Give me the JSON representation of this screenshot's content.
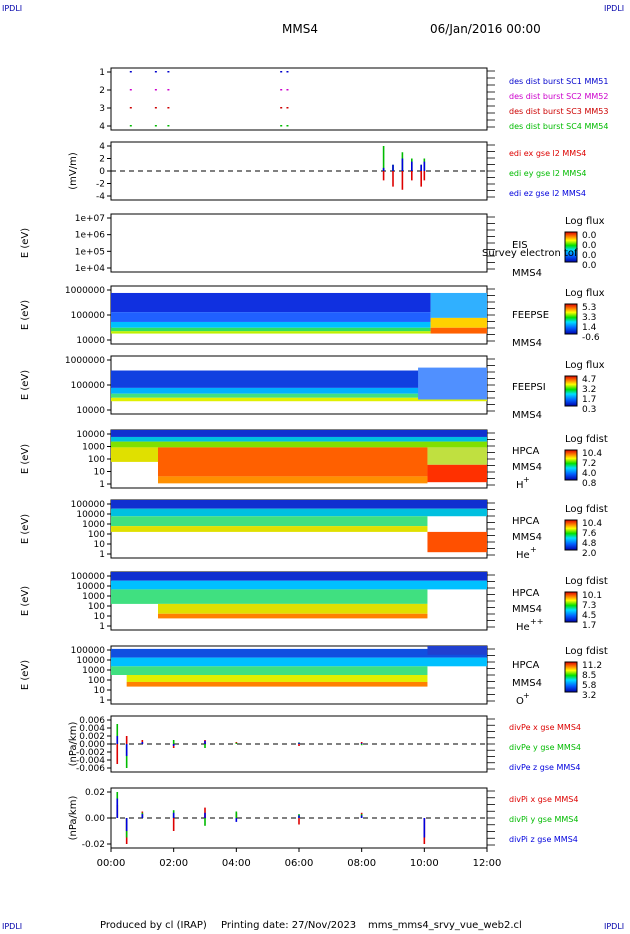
{
  "corners": {
    "tl": "IPDLI",
    "tr": "IPDLI",
    "bl": "IPDLI",
    "br": "IPDLI"
  },
  "header": {
    "spacecraft": "MMS4",
    "date": "06/Jan/2016 00:00"
  },
  "footer": {
    "produced_by": "Produced by cl (IRAP)",
    "printing_date": "Printing date: 27/Nov/2023",
    "script_name": "mms_mms4_srvy_vue_web2.cl"
  },
  "colors": {
    "mms1": "#0000cc",
    "mms2": "#cc00cc",
    "mms3": "#cc0000",
    "mms4": "#00bb00",
    "x": "#dd0000",
    "y": "#00bb00",
    "z": "#0000dd"
  },
  "chart_data": [
    {
      "type": "scatter",
      "id": "burst",
      "y_ticks": [
        "1",
        "2",
        "3",
        "4"
      ],
      "ylim": [
        0.5,
        4.5
      ],
      "legend": [
        {
          "text": "des dist burst SC1 MM51",
          "color": "#0000cc"
        },
        {
          "text": "des dist burst SC2 MM52",
          "color": "#cc00cc"
        },
        {
          "text": "des dist burst SC3 MM53",
          "color": "#cc0000"
        },
        {
          "text": "des dist burst SC4 MM54",
          "color": "#00bb00"
        }
      ],
      "series": [
        {
          "y": 4,
          "x": [
            0.6,
            1.4,
            1.8,
            5.4,
            5.6
          ]
        },
        {
          "y": 3,
          "x": [
            0.6,
            1.4,
            1.8,
            5.4,
            5.6
          ]
        },
        {
          "y": 2,
          "x": [
            0.6,
            1.4,
            1.8,
            5.4,
            5.6
          ]
        },
        {
          "y": 1,
          "x": [
            0.6,
            1.4,
            1.8,
            5.4,
            5.6
          ]
        }
      ]
    },
    {
      "type": "line",
      "id": "edi",
      "ylabel": "(mV/m)",
      "y_ticks": [
        "4",
        "2",
        "0",
        "-2",
        "-4"
      ],
      "ylim": [
        -6,
        6
      ],
      "legend": [
        {
          "text": "edi ex gse l2 MMS4",
          "color": "#dd0000"
        },
        {
          "text": "edi ey gse l2 MMS4",
          "color": "#00bb00"
        },
        {
          "text": "edi ez gse l2 MMS4",
          "color": "#0000dd"
        }
      ],
      "series": [
        {
          "name": "edi ex gse l2 MMS4",
          "x": [
            8.7,
            9.0,
            9.3,
            9.6,
            9.9,
            10.0
          ],
          "y": [
            -1.5,
            -2.5,
            -3,
            -1.5,
            -2.5,
            -1.5
          ]
        },
        {
          "name": "edi ey gse l2 MMS4",
          "x": [
            8.7,
            9.0,
            9.3,
            9.6,
            9.9,
            10.0
          ],
          "y": [
            4,
            1,
            3,
            2,
            1,
            2
          ]
        },
        {
          "name": "edi ez gse l2 MMS4",
          "x": [
            8.7,
            9.0,
            9.3,
            9.6,
            9.9,
            10.0
          ],
          "y": [
            0.5,
            1,
            2,
            1.5,
            1,
            1.5
          ]
        }
      ]
    },
    {
      "type": "heatmap",
      "id": "eis",
      "ylabel": "E (eV)",
      "y_ticks": [
        "1e+07",
        "1e+06",
        "1e+05",
        "1e+04"
      ],
      "instrument": [
        "EIS",
        "MMS4"
      ],
      "overlay_text": "Survey electron tof",
      "cb_title": "Log flux",
      "cb_ticks": [
        "0.0",
        "0.0",
        "0.0",
        "0.0"
      ]
    },
    {
      "type": "heatmap",
      "id": "feepse",
      "ylabel": "E (eV)",
      "y_ticks": [
        "1000000",
        "100000",
        "10000"
      ],
      "instrument": [
        "FEEPSE",
        "MMS4"
      ],
      "cb_title": "Log flux",
      "cb_ticks": [
        "5.3",
        "3.3",
        "1.4",
        "-0.6"
      ]
    },
    {
      "type": "heatmap",
      "id": "feepsi",
      "ylabel": "E (eV)",
      "y_ticks": [
        "1000000",
        "100000",
        "10000"
      ],
      "instrument": [
        "FEEPSI",
        "MMS4"
      ],
      "cb_title": "Log flux",
      "cb_ticks": [
        "4.7",
        "3.2",
        "1.7",
        "0.3"
      ]
    },
    {
      "type": "heatmap",
      "id": "hpca_h",
      "ylabel": "E (eV)",
      "y_ticks": [
        "10000",
        "1000",
        "100",
        "10",
        "1"
      ],
      "instrument": [
        "HPCA",
        "MMS4"
      ],
      "species": "H",
      "charge": "+",
      "cb_title": "Log fdist",
      "cb_ticks": [
        "10.4",
        "7.2",
        "4.0",
        "0.8"
      ]
    },
    {
      "type": "heatmap",
      "id": "hpca_he1",
      "ylabel": "E (eV)",
      "y_ticks": [
        "100000",
        "10000",
        "1000",
        "100",
        "10",
        "1"
      ],
      "instrument": [
        "HPCA",
        "MMS4"
      ],
      "species": "He",
      "charge": "+",
      "cb_title": "Log fdist",
      "cb_ticks": [
        "10.4",
        "7.6",
        "4.8",
        "2.0"
      ]
    },
    {
      "type": "heatmap",
      "id": "hpca_he2",
      "ylabel": "E (eV)",
      "y_ticks": [
        "100000",
        "10000",
        "1000",
        "100",
        "10",
        "1"
      ],
      "instrument": [
        "HPCA",
        "MMS4"
      ],
      "species": "He",
      "charge": "++",
      "cb_title": "Log fdist",
      "cb_ticks": [
        "10.1",
        "7.3",
        "4.5",
        "1.7"
      ]
    },
    {
      "type": "heatmap",
      "id": "hpca_o",
      "ylabel": "E (eV)",
      "y_ticks": [
        "100000",
        "10000",
        "1000",
        "100",
        "10",
        "1"
      ],
      "instrument": [
        "HPCA",
        "MMS4"
      ],
      "species": "O",
      "charge": "+",
      "cb_title": "Log fdist",
      "cb_ticks": [
        "11.2",
        "8.5",
        "5.8",
        "3.2"
      ]
    },
    {
      "type": "line",
      "id": "divpe",
      "ylabel": "(nPa/km)",
      "y_ticks": [
        "0.006",
        "0.004",
        "0.002",
        "0.000",
        "-0.002",
        "-0.004",
        "-0.006"
      ],
      "ylim": [
        -0.008,
        0.006
      ],
      "legend": [
        {
          "text": "divPe x gse MMS4",
          "color": "#dd0000"
        },
        {
          "text": "divPe y gse MMS4",
          "color": "#00bb00"
        },
        {
          "text": "divPe z gse MMS4",
          "color": "#0000dd"
        }
      ],
      "series": [
        {
          "name": "divPe x gse MMS4",
          "x": [
            0.2,
            0.5,
            1.0,
            2.0,
            3.0,
            4.0,
            6.0,
            8.0,
            10.0
          ],
          "y": [
            -0.005,
            0.002,
            0.001,
            -0.001,
            0.001,
            0.0005,
            -0.0005,
            0.0005,
            0.0
          ]
        },
        {
          "name": "divPe y gse MMS4",
          "x": [
            0.2,
            0.5,
            1.0,
            2.0,
            3.0,
            4.0,
            6.0,
            8.0,
            10.0
          ],
          "y": [
            0.005,
            -0.006,
            0.0,
            0.001,
            -0.001,
            0.0003,
            0.0004,
            -0.0003,
            0.0
          ]
        },
        {
          "name": "divPe z gse MMS4",
          "x": [
            0.2,
            0.5,
            1.0,
            2.0,
            3.0,
            4.0,
            6.0,
            8.0,
            10.0
          ],
          "y": [
            0.002,
            -0.003,
            0.0005,
            -0.0005,
            0.0008,
            0.0,
            0.0003,
            0.0002,
            0.0
          ]
        }
      ]
    },
    {
      "type": "line",
      "id": "divpi",
      "ylabel": "(nPa/km)",
      "y_ticks": [
        "0.02",
        "0.00",
        "-0.02"
      ],
      "ylim": [
        -0.03,
        0.03
      ],
      "legend": [
        {
          "text": "divPi x gse MMS4",
          "color": "#dd0000"
        },
        {
          "text": "divPi y gse MMS4",
          "color": "#00bb00"
        },
        {
          "text": "divPi z gse MMS4",
          "color": "#0000dd"
        }
      ],
      "series": [
        {
          "name": "divPi x gse MMS4",
          "x": [
            0.2,
            0.5,
            1.0,
            2.0,
            3.0,
            4.0,
            6.0,
            8.0,
            10.0
          ],
          "y": [
            0.01,
            -0.02,
            0.005,
            -0.01,
            0.008,
            0.004,
            -0.005,
            0.004,
            -0.02
          ]
        },
        {
          "name": "divPi y gse MMS4",
          "x": [
            0.2,
            0.5,
            1.0,
            2.0,
            3.0,
            4.0,
            6.0,
            8.0,
            10.0
          ],
          "y": [
            0.02,
            -0.015,
            0.004,
            0.006,
            -0.006,
            0.005,
            0.003,
            0.003,
            0.0
          ]
        },
        {
          "name": "divPi z gse MMS4",
          "x": [
            0.2,
            0.5,
            1.0,
            2.0,
            3.0,
            4.0,
            6.0,
            8.0,
            10.0
          ],
          "y": [
            0.015,
            -0.01,
            0.003,
            0.004,
            0.004,
            -0.003,
            0.002,
            0.002,
            -0.015
          ]
        }
      ]
    }
  ],
  "x_axis": {
    "ticks": [
      "00:00",
      "02:00",
      "04:00",
      "06:00",
      "08:00",
      "10:00",
      "12:00"
    ],
    "xlim": [
      0,
      12
    ]
  }
}
